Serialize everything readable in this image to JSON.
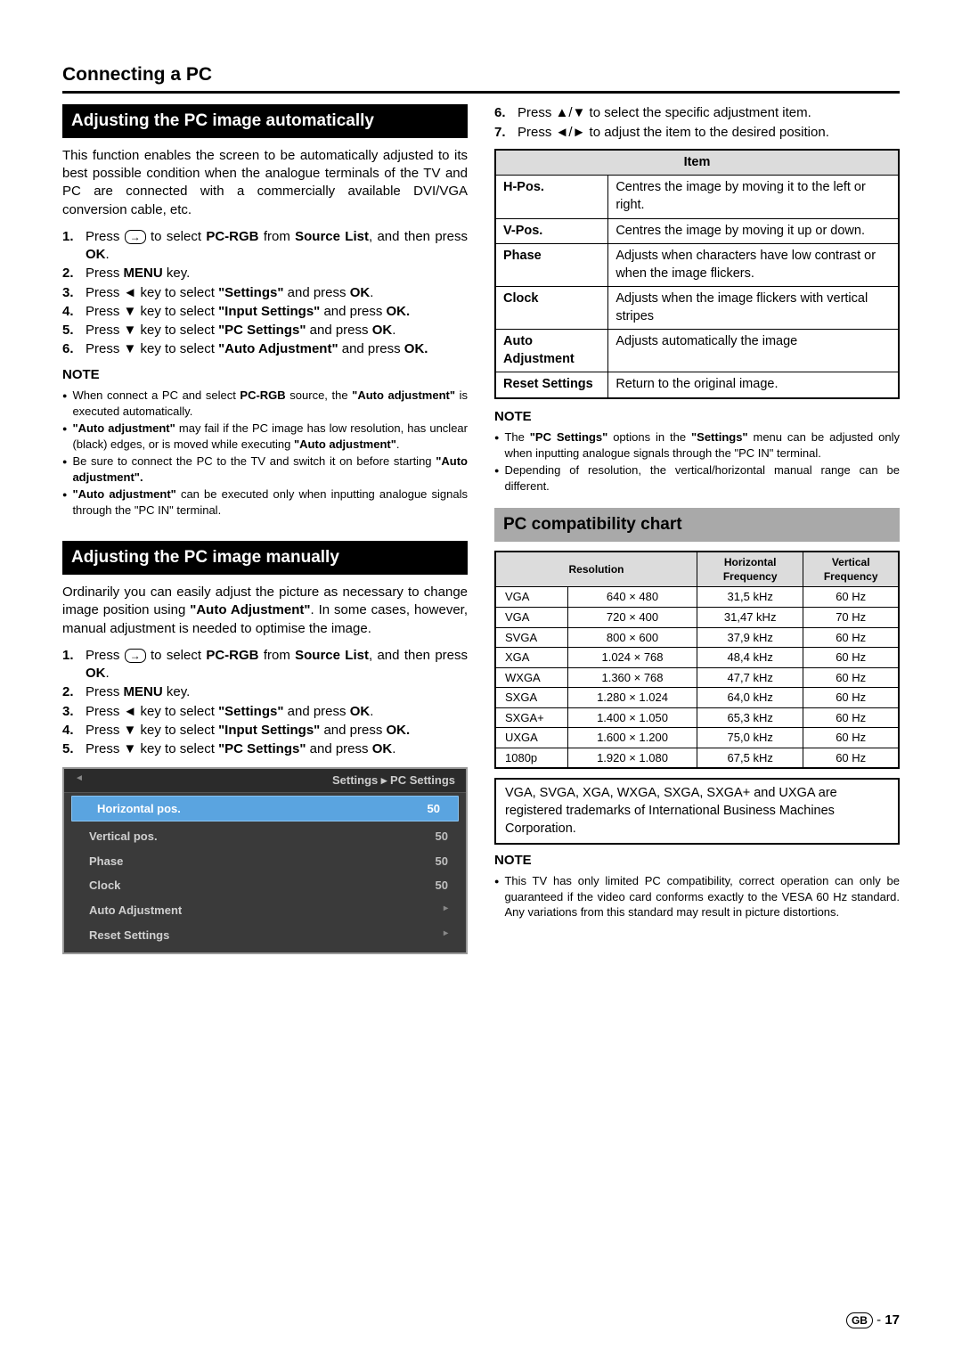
{
  "pageTitle": "Connecting a PC",
  "left": {
    "section1": {
      "header": "Adjusting the PC image automatically",
      "intro": "This function enables the screen to be automatically adjusted to its best possible condition when the analogue terminals of the TV and PC are connected with a commercially available DVI/VGA conversion cable, etc.",
      "steps": [
        {
          "n": "1.",
          "pre": "Press ",
          "icon": "→",
          "mid": " to select ",
          "b1": "PC-RGB",
          "mid2": " from ",
          "b2": "Source List",
          "post": ", and then press ",
          "b3": "OK",
          "end": "."
        },
        {
          "n": "2.",
          "full": "Press <b>MENU</b> key."
        },
        {
          "n": "3.",
          "full": "Press ◄ key to select <b>\"Settings\"</b> and press <b>OK</b>."
        },
        {
          "n": "4.",
          "full": "Press ▼ key to select <b>\"Input Settings\"</b> and press <b>OK.</b>"
        },
        {
          "n": "5.",
          "full": "Press ▼ key to select <b>\"PC Settings\"</b> and press <b>OK</b>."
        },
        {
          "n": "6.",
          "full": "Press ▼ key to select <b>\"Auto Adjustment\"</b> and press <b>OK.</b>"
        }
      ],
      "noteLabel": "NOTE",
      "notes": [
        "When connect a PC and select <b>PC-RGB</b> source, the <b>\"Auto adjustment\"</b> is executed automatically.",
        "<b>\"Auto adjustment\"</b> may fail if the PC image has low resolution, has unclear (black) edges, or is moved while executing <b>\"Auto adjustment\"</b>.",
        "Be sure to connect the PC to the TV and switch it on before starting <b>\"Auto adjustment\".</b>",
        "<b>\"Auto adjustment\"</b> can be executed only when inputting analogue signals through the \"PC IN\" terminal."
      ]
    },
    "section2": {
      "header": "Adjusting the PC image manually",
      "intro": "Ordinarily you can easily adjust the picture as necessary to change image position using <b>\"Auto Adjustment\"</b>. In some cases, however, manual adjustment is needed to optimise the image.",
      "steps": [
        {
          "n": "1.",
          "pre": "Press ",
          "icon": "→",
          "mid": " to select ",
          "b1": "PC-RGB",
          "mid2": " from ",
          "b2": "Source List",
          "post": ", and then press ",
          "b3": "OK",
          "end": "."
        },
        {
          "n": "2.",
          "full": "Press <b>MENU</b> key."
        },
        {
          "n": "3.",
          "full": "Press ◄ key to select <b>\"Settings\"</b> and press <b>OK</b>."
        },
        {
          "n": "4.",
          "full": "Press ▼ key to select <b>\"Input Settings\"</b> and press <b>OK.</b>"
        },
        {
          "n": "5.",
          "full": "Press ▼ key to select <b>\"PC Settings\"</b> and press <b>OK</b>."
        }
      ]
    },
    "osd": {
      "header": "Settings ▸ PC Settings",
      "rows": [
        {
          "label": "Horizontal pos.",
          "value": "50",
          "selected": true
        },
        {
          "label": "Vertical pos.",
          "value": "50"
        },
        {
          "label": "Phase",
          "value": "50"
        },
        {
          "label": "Clock",
          "value": "50"
        },
        {
          "label": "Auto Adjustment",
          "chevron": true
        },
        {
          "label": "Reset Settings",
          "chevron": true
        }
      ]
    }
  },
  "right": {
    "topSteps": [
      {
        "n": "6.",
        "full": "Press ▲/▼ to select the specific adjustment item."
      },
      {
        "n": "7.",
        "full": "Press ◄/► to adjust the item to the desired position."
      }
    ],
    "itemTable": {
      "header": "Item",
      "rows": [
        {
          "k": "H-Pos.",
          "v": "Centres the image by moving it to the left or right."
        },
        {
          "k": "V-Pos.",
          "v": "Centres the image by moving it up or down."
        },
        {
          "k": "Phase",
          "v": "Adjusts when characters have low contrast or when the image flickers."
        },
        {
          "k": "Clock",
          "v": "Adjusts when the image flickers with vertical stripes"
        },
        {
          "k": "Auto Adjustment",
          "v": "Adjusts automatically the image"
        },
        {
          "k": "Reset Settings",
          "v": "Return to the original image."
        }
      ]
    },
    "noteLabel": "NOTE",
    "notes1": [
      "The <b>\"PC Settings\"</b> options in the <b>\"Settings\"</b> menu can be adjusted only when inputting analogue signals through the \"PC IN\" terminal.",
      "Depending of resolution, the vertical/horizontal manual range can be different."
    ],
    "compatHeader": "PC compatibility chart",
    "compatTable": {
      "headers": [
        "Resolution",
        "",
        "Horizontal Frequency",
        "Vertical Frequency"
      ],
      "rows": [
        [
          "VGA",
          "640 × 480",
          "31,5 kHz",
          "60 Hz"
        ],
        [
          "VGA",
          "720 × 400",
          "31,47 kHz",
          "70 Hz"
        ],
        [
          "SVGA",
          "800 × 600",
          "37,9 kHz",
          "60 Hz"
        ],
        [
          "XGA",
          "1.024 × 768",
          "48,4 kHz",
          "60 Hz"
        ],
        [
          "WXGA",
          "1.360 × 768",
          "47,7 kHz",
          "60 Hz"
        ],
        [
          "SXGA",
          "1.280 × 1.024",
          "64,0 kHz",
          "60 Hz"
        ],
        [
          "SXGA+",
          "1.400 × 1.050",
          "65,3 kHz",
          "60 Hz"
        ],
        [
          "UXGA",
          "1.600 × 1.200",
          "75,0 kHz",
          "60 Hz"
        ],
        [
          "1080p",
          "1.920 × 1.080",
          "67,5 kHz",
          "60 Hz"
        ]
      ]
    },
    "trademark": "VGA, SVGA, XGA, WXGA, SXGA, SXGA+ and UXGA are registered trademarks of International Business Machines Corporation.",
    "notes2": [
      "This TV has only limited PC compatibility, correct operation can only be guaranteed if the video card conforms exactly to the VESA 60 Hz standard. Any variations from this standard may result in picture distortions."
    ]
  },
  "footer": {
    "gb": "GB",
    "page": "17"
  }
}
